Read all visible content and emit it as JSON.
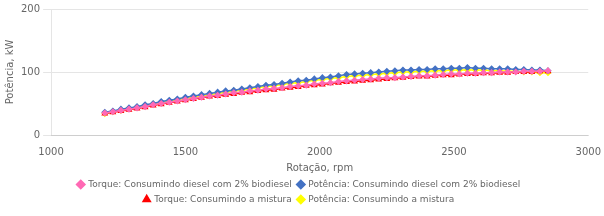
{
  "chart_data": {
    "type": "line",
    "xlabel": "Rotação, rpm",
    "ylabel": "Potência, kW",
    "xlim": [
      1000,
      3000
    ],
    "ylim": [
      0,
      200
    ],
    "xticks": [
      1000,
      1500,
      2000,
      2500,
      3000
    ],
    "yticks": [
      0,
      100,
      200
    ],
    "grid": "y",
    "legend": "bottom",
    "x": [
      1200,
      1230,
      1260,
      1290,
      1320,
      1350,
      1380,
      1410,
      1440,
      1470,
      1500,
      1530,
      1560,
      1590,
      1620,
      1650,
      1680,
      1710,
      1740,
      1770,
      1800,
      1830,
      1860,
      1890,
      1920,
      1950,
      1980,
      2010,
      2040,
      2070,
      2100,
      2130,
      2160,
      2190,
      2220,
      2250,
      2280,
      2310,
      2340,
      2370,
      2400,
      2430,
      2460,
      2490,
      2520,
      2550,
      2580,
      2610,
      2640,
      2670,
      2700,
      2730,
      2760,
      2790,
      2820,
      2850
    ],
    "series": [
      {
        "name": "Torque: Consumindo diesel com 2% biodiesel",
        "color": "#ff69b4",
        "marker": "diamond",
        "values": [
          35,
          37,
          39,
          41,
          43,
          45,
          48,
          50,
          52,
          54,
          56,
          58,
          60,
          62,
          63,
          65,
          67,
          68,
          70,
          71,
          73,
          74,
          75,
          77,
          78,
          79,
          81,
          82,
          83,
          85,
          86,
          87,
          88,
          89,
          90,
          91,
          91,
          92,
          93,
          94,
          94,
          95,
          96,
          97,
          97,
          98,
          98,
          99,
          99,
          100,
          100,
          100,
          101,
          101,
          101,
          102
        ]
      },
      {
        "name": "Potência: Consumindo diesel com 2% biodiesel",
        "color": "#4472c4",
        "marker": "diamond",
        "values": [
          36,
          38,
          41,
          43,
          45,
          48,
          50,
          53,
          55,
          57,
          60,
          62,
          64,
          66,
          68,
          70,
          71,
          73,
          75,
          77,
          79,
          80,
          82,
          84,
          86,
          87,
          89,
          91,
          92,
          94,
          96,
          97,
          98,
          99,
          100,
          101,
          102,
          103,
          103,
          104,
          104,
          105,
          105,
          106,
          106,
          107,
          106,
          106,
          105,
          105,
          105,
          104,
          104,
          103,
          103,
          102
        ]
      },
      {
        "name": "Torque: Consumindo a mistura",
        "color": "#ff0000",
        "marker": "triangle",
        "values": [
          34,
          36,
          38,
          40,
          42,
          44,
          47,
          49,
          51,
          53,
          55,
          57,
          59,
          61,
          62,
          64,
          65,
          67,
          68,
          70,
          71,
          72,
          74,
          75,
          76,
          78,
          79,
          80,
          82,
          83,
          84,
          85,
          86,
          87,
          88,
          89,
          90,
          91,
          92,
          93,
          93,
          94,
          95,
          95,
          96,
          97,
          97,
          98,
          98,
          99,
          99,
          100,
          100,
          100,
          101,
          101
        ]
      },
      {
        "name": "Potência: Consumindo a mistura",
        "color": "#ffff00",
        "marker": "diamond",
        "values": [
          34,
          37,
          39,
          42,
          44,
          46,
          49,
          51,
          54,
          56,
          58,
          60,
          62,
          64,
          66,
          68,
          70,
          71,
          73,
          75,
          77,
          78,
          80,
          82,
          83,
          85,
          87,
          88,
          90,
          91,
          93,
          94,
          95,
          96,
          97,
          98,
          99,
          100,
          100,
          101,
          101,
          102,
          102,
          103,
          103,
          103,
          103,
          103,
          102,
          102,
          101,
          101,
          100,
          100,
          99,
          99
        ]
      }
    ]
  }
}
